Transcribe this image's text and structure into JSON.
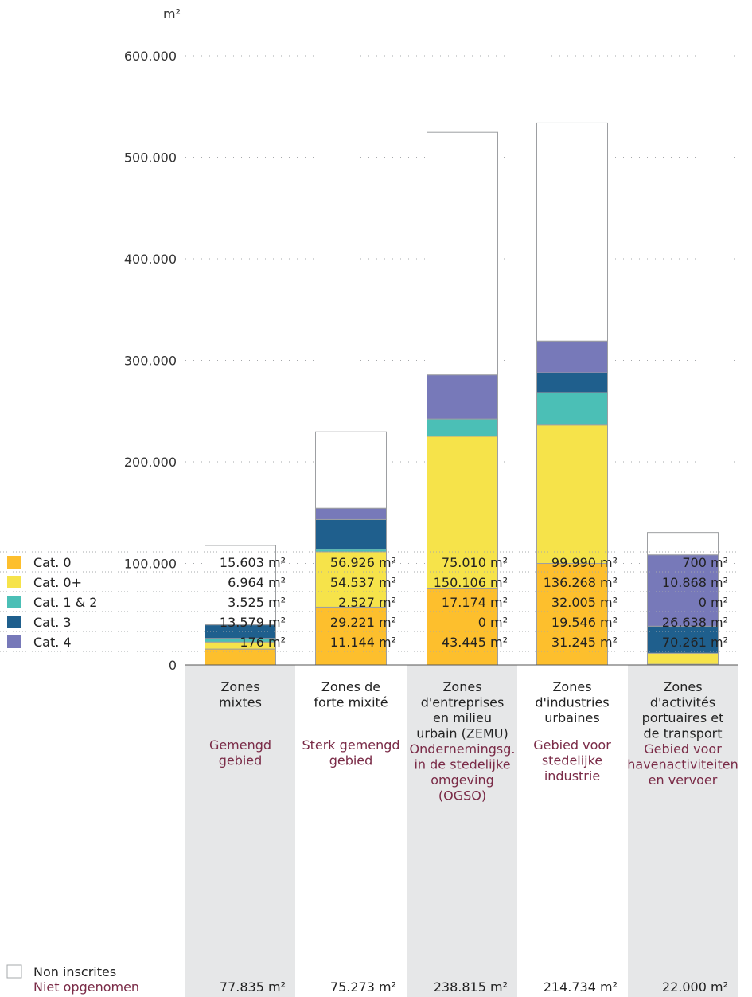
{
  "chart_data": {
    "type": "bar",
    "stacked": true,
    "unit_label": "m²",
    "ylim": [
      0,
      600000
    ],
    "y_ticks": [
      "0",
      "100.000",
      "200.000",
      "300.000",
      "400.000",
      "500.000",
      "600.000"
    ],
    "y_tick_values": [
      0,
      100000,
      200000,
      300000,
      400000,
      500000,
      600000
    ],
    "grid": true,
    "categories": [
      {
        "fr": [
          "Zones",
          "mixtes"
        ],
        "nl": [
          "Gemengd",
          "gebied"
        ]
      },
      {
        "fr": [
          "Zones de",
          "forte mixité"
        ],
        "nl": [
          "Sterk gemengd",
          "gebied"
        ]
      },
      {
        "fr": [
          "Zones",
          "d'entreprises",
          "en milieu",
          "urbain (ZEMU)"
        ],
        "nl": [
          "Ondernemingsg.",
          "in de stedelijke",
          "omgeving",
          "(OGSO)"
        ]
      },
      {
        "fr": [
          "Zones",
          "d'industries",
          "urbaines"
        ],
        "nl": [
          "Gebied voor",
          "stedelijke",
          "industrie"
        ]
      },
      {
        "fr": [
          "Zones",
          "d'activités",
          "portuaires et",
          "de transport"
        ],
        "nl": [
          "Gebied voor",
          "havenactiviteiten",
          "en vervoer"
        ]
      }
    ],
    "series": [
      {
        "name": "Cat. 0",
        "color": "#fdbf2d",
        "values": [
          15603,
          56926,
          75010,
          99990,
          700
        ],
        "labels": [
          "15.603 m²",
          "56.926 m²",
          "75.010 m²",
          "99.990 m²",
          "700 m²"
        ]
      },
      {
        "name": "Cat. 0+",
        "color": "#f6e34a",
        "values": [
          6964,
          54537,
          150106,
          136268,
          10868
        ],
        "labels": [
          "6.964 m²",
          "54.537 m²",
          "150.106 m²",
          "136.268 m²",
          "10.868 m²"
        ]
      },
      {
        "name": "Cat. 1 & 2",
        "color": "#4bbfb6",
        "values": [
          3525,
          2527,
          17174,
          32005,
          0
        ],
        "labels": [
          "3.525 m²",
          "2.527 m²",
          "17.174 m²",
          "32.005 m²",
          "0 m²"
        ]
      },
      {
        "name": "Cat. 3",
        "color": "#1f5f8d",
        "values": [
          13579,
          29221,
          0,
          19546,
          26638
        ],
        "labels": [
          "13.579 m²",
          "29.221 m²",
          "0 m²",
          "19.546 m²",
          "26.638 m²"
        ]
      },
      {
        "name": "Cat. 4",
        "color": "#7779b9",
        "values": [
          176,
          11144,
          43445,
          31245,
          70261
        ],
        "labels": [
          "176 m²",
          "11.144 m²",
          "43.445 m²",
          "31.245 m²",
          "70.261 m²"
        ]
      },
      {
        "name": "Non inscrites",
        "name_nl": "Niet opgenomen",
        "color": "#ffffff",
        "values": [
          77835,
          75273,
          238815,
          214734,
          22000
        ],
        "labels": [
          "77.835 m²",
          "75.273 m²",
          "238.815 m²",
          "214.734 m²",
          "22.000 m²"
        ]
      }
    ]
  }
}
